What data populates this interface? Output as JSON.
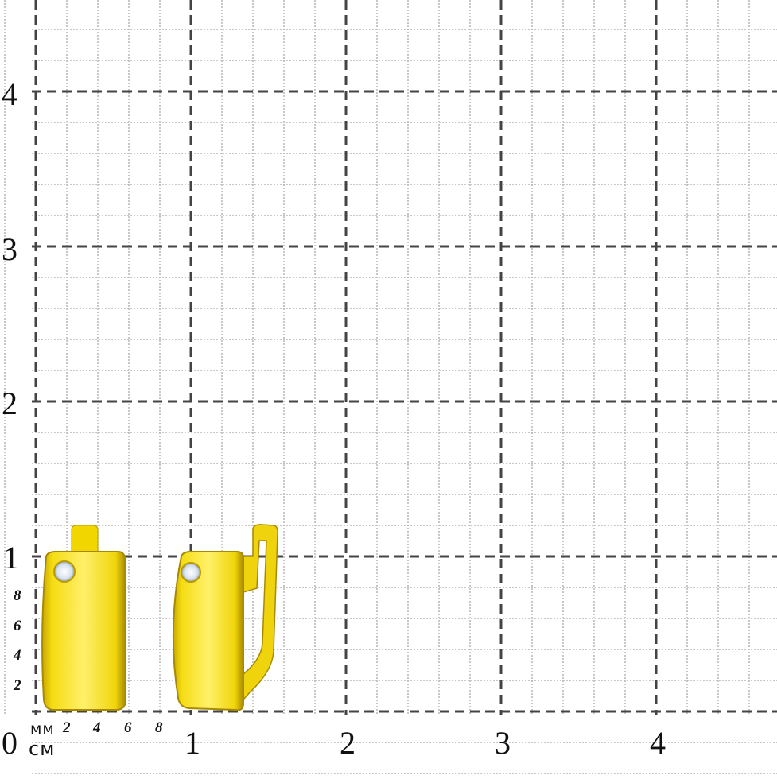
{
  "scale": {
    "cm_x_labels": [
      "0",
      "1",
      "2",
      "3",
      "4"
    ],
    "cm_y_labels": [
      "1",
      "2",
      "3",
      "4"
    ],
    "mm_x_labels": [
      "2",
      "4",
      "6",
      "8"
    ],
    "mm_y_labels": [
      "2",
      "4",
      "6",
      "8"
    ],
    "mm_unit": "мм",
    "cm_unit": "см"
  },
  "colors": {
    "grid_major": "#444444",
    "grid_minor": "#b5b5b5",
    "gold": "#f2d90a",
    "gold_dark": "#b89a00"
  },
  "product": {
    "type": "earrings",
    "icon": "gold-earring-with-stone"
  }
}
